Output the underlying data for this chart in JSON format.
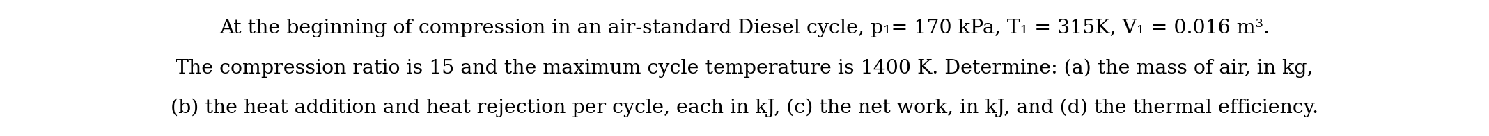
{
  "line1": "At the beginning of compression in an air-standard Diesel cycle, p₁= 170 kPa, T₁ = 315K, V₁ = 0.016 m³.",
  "line2": "The compression ratio is 15 and the maximum cycle temperature is 1400 K. Determine: (a) the mass of air, in kg,",
  "line3": "(b) the heat addition and heat rejection per cycle, each in kJ, (c) the net work, in kJ, and (d) the thermal efficiency.",
  "background_color": "#ffffff",
  "text_color": "#000000",
  "font_size": 20.5,
  "fig_width": 21.38,
  "fig_height": 1.96,
  "dpi": 100
}
